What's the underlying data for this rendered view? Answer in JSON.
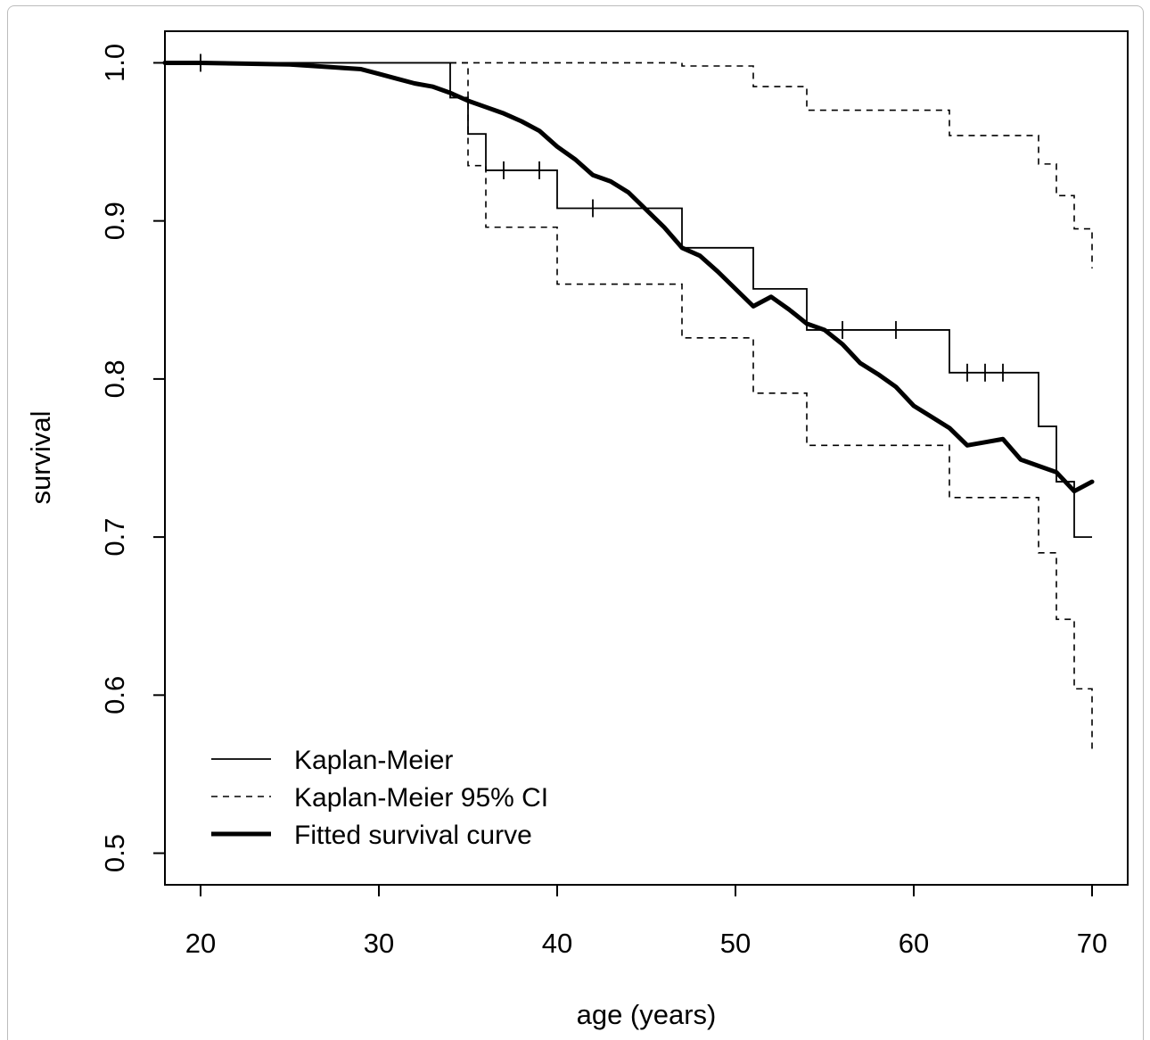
{
  "chart_data": {
    "type": "line",
    "title": "",
    "xlabel": "age (years)",
    "ylabel": "survival",
    "xlim": [
      18,
      72
    ],
    "ylim": [
      0.48,
      1.02
    ],
    "xticks": [
      20,
      30,
      40,
      50,
      60,
      70
    ],
    "yticks": [
      0.5,
      0.6,
      0.7,
      0.8,
      0.9,
      1.0
    ],
    "xtick_labels": [
      "20",
      "30",
      "40",
      "50",
      "60",
      "70"
    ],
    "ytick_labels": [
      "0.5",
      "0.6",
      "0.7",
      "0.8",
      "0.9",
      "1.0"
    ],
    "grid": false,
    "legend_position": "bottom-left",
    "series": [
      {
        "name": "Kaplan-Meier",
        "style": "solid",
        "step": true,
        "x": [
          18,
          34,
          35,
          36,
          40,
          47,
          51,
          54,
          62,
          67,
          68,
          69,
          70
        ],
        "y": [
          1.0,
          0.978,
          0.955,
          0.932,
          0.908,
          0.883,
          0.857,
          0.831,
          0.804,
          0.77,
          0.735,
          0.7,
          0.7
        ],
        "censored_x": [
          20,
          37,
          39,
          42,
          56,
          59,
          63,
          64,
          65
        ],
        "censored_y": [
          1.0,
          0.932,
          0.932,
          0.908,
          0.831,
          0.831,
          0.804,
          0.804,
          0.804
        ]
      },
      {
        "name": "Kaplan-Meier 95% CI",
        "style": "dashed",
        "step": true,
        "upper": {
          "x": [
            34,
            40,
            47,
            51,
            54,
            62,
            67,
            68,
            69,
            70
          ],
          "y": [
            1.0,
            1.0,
            0.998,
            0.985,
            0.97,
            0.954,
            0.936,
            0.916,
            0.895,
            0.87
          ]
        },
        "lower": {
          "x": [
            34,
            35,
            36,
            40,
            47,
            51,
            54,
            62,
            67,
            68,
            69,
            70
          ],
          "y": [
            1.0,
            0.935,
            0.896,
            0.86,
            0.826,
            0.791,
            0.758,
            0.725,
            0.69,
            0.648,
            0.604,
            0.563
          ]
        }
      },
      {
        "name": "Fitted survival curve",
        "style": "thick",
        "step": false,
        "x": [
          18,
          20,
          25,
          29,
          30,
          31,
          32,
          33,
          34,
          35,
          36,
          37,
          38,
          39,
          40,
          41,
          42,
          43,
          44,
          45,
          46,
          47,
          48,
          49,
          50,
          51,
          52,
          53,
          54,
          55,
          56,
          57,
          58,
          59,
          60,
          61,
          62,
          63,
          64,
          65,
          66,
          67,
          68,
          69,
          70
        ],
        "y": [
          1.0,
          1.0,
          0.999,
          0.996,
          0.993,
          0.99,
          0.987,
          0.985,
          0.981,
          0.976,
          0.972,
          0.968,
          0.963,
          0.957,
          0.947,
          0.939,
          0.929,
          0.925,
          0.918,
          0.907,
          0.896,
          0.883,
          0.878,
          0.868,
          0.857,
          0.846,
          0.852,
          0.844,
          0.835,
          0.831,
          0.822,
          0.81,
          0.803,
          0.795,
          0.783,
          0.776,
          0.769,
          0.758,
          0.76,
          0.762,
          0.749,
          0.745,
          0.741,
          0.729,
          0.735
        ]
      }
    ]
  }
}
